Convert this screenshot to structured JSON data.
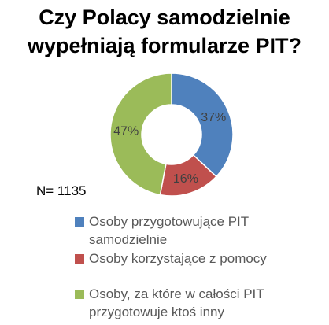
{
  "chart_data": {
    "type": "pie",
    "title_lines": [
      "Czy Polacy samodzielnie",
      "wypełniają formularze PIT?"
    ],
    "categories": [
      "Osoby przygotowujące PIT samodzielnie",
      "Osoby korzystające z pomocy",
      "Osoby, za które w całości PIT przygotowuje ktoś inny"
    ],
    "values": [
      37,
      16,
      47
    ],
    "data_labels": [
      "37%",
      "16%",
      "47%"
    ],
    "colors": [
      "#4F81BD",
      "#C0504D",
      "#9BBB59"
    ],
    "legend_placement": "bottom",
    "note": "N= 1135"
  }
}
